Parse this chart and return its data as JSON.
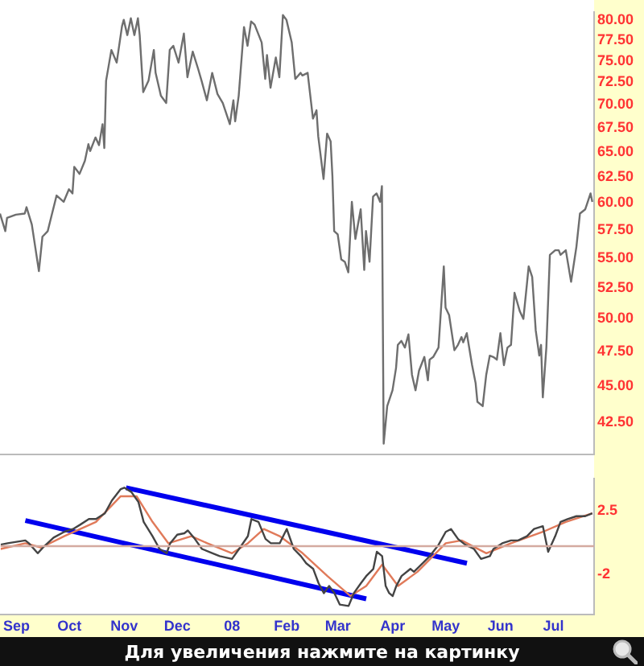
{
  "chart_data": [
    {
      "type": "line",
      "log": true,
      "legend": false,
      "tick_labels": "y",
      "xlim": [
        "2007-08-23",
        "2008-07-24"
      ],
      "ylim": [
        40.4,
        81.0
      ],
      "yticks": [
        {
          "value": 42.5,
          "label": "42.50"
        },
        {
          "value": 45,
          "label": "45.00"
        },
        {
          "value": 47.5,
          "label": "47.50"
        },
        {
          "value": 50,
          "label": "50.00"
        },
        {
          "value": 52.5,
          "label": "52.50"
        },
        {
          "value": 55,
          "label": "55.00"
        },
        {
          "value": 57.5,
          "label": "57.50"
        },
        {
          "value": 60,
          "label": "60.00"
        },
        {
          "value": 62.5,
          "label": "62.50"
        },
        {
          "value": 65,
          "label": "65.00"
        },
        {
          "value": 67.5,
          "label": "67.50"
        },
        {
          "value": 70,
          "label": "70.00"
        },
        {
          "value": 72.5,
          "label": "72.50"
        },
        {
          "value": 75,
          "label": "75.00"
        },
        {
          "value": 77.5,
          "label": "77.50"
        },
        {
          "value": 80,
          "label": "80.00"
        }
      ],
      "series": [
        {
          "color": "#6e6e6e",
          "x": [
            "2007-08-23",
            "2007-08-26",
            "2007-08-27",
            "2007-09-01",
            "2007-09-06",
            "2007-09-07",
            "2007-09-10",
            "2007-09-14",
            "2007-09-16",
            "2007-09-19",
            "2007-09-21",
            "2007-09-24",
            "2007-09-28",
            "2007-10-01",
            "2007-10-03",
            "2007-10-04",
            "2007-10-07",
            "2007-10-10",
            "2007-10-12",
            "2007-10-13",
            "2007-10-16",
            "2007-10-18",
            "2007-10-20",
            "2007-10-21",
            "2007-10-22",
            "2007-10-25",
            "2007-10-28",
            "2007-10-31",
            "2007-11-01",
            "2007-11-03",
            "2007-11-05",
            "2007-11-07",
            "2007-11-09",
            "2007-11-10",
            "2007-11-12",
            "2007-11-15",
            "2007-11-18",
            "2007-11-19",
            "2007-11-22",
            "2007-11-25",
            "2007-11-27",
            "2007-11-29",
            "2007-12-02",
            "2007-12-05",
            "2007-12-07",
            "2007-12-10",
            "2007-12-13",
            "2007-12-15",
            "2007-12-18",
            "2007-12-21",
            "2007-12-24",
            "2007-12-27",
            "2007-12-31",
            "2008-01-02",
            "2008-01-03",
            "2008-01-05",
            "2008-01-08",
            "2008-01-10",
            "2008-01-12",
            "2008-01-14",
            "2008-01-18",
            "2008-01-20",
            "2008-01-21",
            "2008-01-23",
            "2008-01-26",
            "2008-01-28",
            "2008-01-30",
            "2008-02-01",
            "2008-02-04",
            "2008-02-06",
            "2008-02-09",
            "2008-02-10",
            "2008-02-13",
            "2008-02-16",
            "2008-02-18",
            "2008-02-19",
            "2008-02-22",
            "2008-02-24",
            "2008-02-26",
            "2008-02-27",
            "2008-02-28",
            "2008-03-01",
            "2008-03-03",
            "2008-03-05",
            "2008-03-07",
            "2008-03-09",
            "2008-03-11",
            "2008-03-14",
            "2008-03-16",
            "2008-03-17",
            "2008-03-19",
            "2008-03-21",
            "2008-03-23",
            "2008-03-25",
            "2008-03-26",
            "2008-03-27",
            "2008-03-29",
            "2008-04-01",
            "2008-04-03",
            "2008-04-04",
            "2008-04-06",
            "2008-04-08",
            "2008-04-10",
            "2008-04-12",
            "2008-04-14",
            "2008-04-16",
            "2008-04-19",
            "2008-04-21",
            "2008-04-22",
            "2008-04-24",
            "2008-04-27",
            "2008-04-30",
            "2008-05-01",
            "2008-05-03",
            "2008-05-06",
            "2008-05-08",
            "2008-05-10",
            "2008-05-11",
            "2008-05-13",
            "2008-05-16",
            "2008-05-18",
            "2008-05-19",
            "2008-05-22",
            "2008-05-24",
            "2008-05-26",
            "2008-05-28",
            "2008-05-30",
            "2008-06-01",
            "2008-06-03",
            "2008-06-05",
            "2008-06-07",
            "2008-06-09",
            "2008-06-12",
            "2008-06-14",
            "2008-06-16",
            "2008-06-17",
            "2008-06-19",
            "2008-06-21",
            "2008-06-23",
            "2008-06-24",
            "2008-06-25",
            "2008-06-27",
            "2008-06-29",
            "2008-07-02",
            "2008-07-04",
            "2008-07-05",
            "2008-07-08",
            "2008-07-11",
            "2008-07-14",
            "2008-07-16",
            "2008-07-19",
            "2008-07-22",
            "2008-07-23"
          ],
          "values": [
            59.0,
            57.4,
            58.6,
            58.9,
            59.0,
            59.6,
            58.0,
            53.9,
            56.9,
            57.4,
            58.7,
            60.7,
            60.1,
            61.3,
            60.9,
            63.5,
            62.8,
            64.1,
            65.8,
            65.1,
            66.5,
            65.7,
            67.9,
            65.4,
            72.7,
            76.3,
            74.8,
            79.2,
            80.0,
            78.1,
            80.2,
            78.1,
            80.2,
            78.1,
            71.4,
            72.7,
            76.3,
            73.6,
            71.0,
            70.2,
            76.3,
            76.8,
            74.8,
            78.3,
            73.1,
            76.1,
            74.1,
            72.7,
            70.5,
            73.6,
            71.2,
            70.2,
            67.9,
            70.5,
            68.2,
            71.0,
            79.1,
            76.8,
            79.8,
            79.4,
            77.2,
            72.9,
            75.7,
            71.9,
            75.4,
            73.1,
            80.6,
            80.0,
            77.2,
            72.9,
            73.6,
            73.3,
            73.6,
            68.5,
            69.4,
            66.6,
            62.3,
            66.9,
            66.1,
            62.6,
            57.4,
            57.1,
            54.9,
            54.7,
            53.8,
            60.1,
            56.7,
            59.4,
            54.0,
            57.4,
            54.7,
            60.6,
            60.9,
            60.1,
            61.6,
            41.1,
            43.6,
            44.7,
            46.3,
            48.0,
            48.3,
            47.8,
            48.8,
            45.8,
            44.7,
            46.1,
            47.1,
            45.4,
            46.9,
            47.1,
            47.8,
            54.3,
            50.9,
            50.3,
            47.6,
            48.0,
            48.6,
            48.2,
            48.9,
            46.5,
            45.2,
            43.9,
            43.6,
            45.8,
            47.2,
            47.1,
            46.9,
            48.9,
            46.5,
            47.8,
            48.0,
            52.1,
            50.6,
            50.0,
            52.8,
            54.3,
            53.4,
            49.1,
            47.2,
            48.0,
            44.2,
            47.8,
            55.3,
            55.7,
            55.7,
            55.3,
            55.7,
            53.0,
            56.0,
            59.0,
            59.4,
            60.9,
            60.1
          ]
        }
      ]
    },
    {
      "type": "line",
      "legend": false,
      "xlim": [
        "2007-08-23",
        "2008-07-24"
      ],
      "ylim": [
        -4.8,
        4.75
      ],
      "yticks": [
        -2,
        2.5
      ],
      "xticks": [
        {
          "value": "2007-09-01",
          "label": "Sep"
        },
        {
          "value": "2007-10-01",
          "label": "Oct"
        },
        {
          "value": "2007-11-01",
          "label": "Nov"
        },
        {
          "value": "2007-12-01",
          "label": "Dec"
        },
        {
          "value": "2008-01-01",
          "label": "08"
        },
        {
          "value": "2008-02-01",
          "label": "Feb"
        },
        {
          "value": "2008-03-01",
          "label": "Mar"
        },
        {
          "value": "2008-04-01",
          "label": "Apr"
        },
        {
          "value": "2008-05-01",
          "label": "May"
        },
        {
          "value": "2008-06-01",
          "label": "Jun"
        },
        {
          "value": "2008-07-01",
          "label": "Jul"
        }
      ],
      "ref_lines": [
        {
          "axis": "y",
          "value": 0,
          "color": "#d4aaa0"
        }
      ],
      "annotations": [
        "Для увеличения нажмите на картинку"
      ],
      "series": [
        {
          "color": "#444444",
          "x": [
            "2007-08-23",
            "2007-08-27",
            "2007-09-01",
            "2007-09-06",
            "2007-09-08",
            "2007-09-13",
            "2007-09-16",
            "2007-09-22",
            "2007-09-28",
            "2007-10-03",
            "2007-10-07",
            "2007-10-12",
            "2007-10-16",
            "2007-10-21",
            "2007-10-25",
            "2007-10-30",
            "2007-11-01",
            "2007-11-05",
            "2007-11-09",
            "2007-11-12",
            "2007-11-17",
            "2007-11-21",
            "2007-11-25",
            "2007-11-27",
            "2007-12-01",
            "2007-12-05",
            "2007-12-07",
            "2007-12-11",
            "2007-12-15",
            "2007-12-21",
            "2007-12-25",
            "2008-01-01",
            "2008-01-05",
            "2008-01-10",
            "2008-01-12",
            "2008-01-16",
            "2008-01-20",
            "2008-01-23",
            "2008-01-28",
            "2008-01-30",
            "2008-02-01",
            "2008-02-05",
            "2008-02-09",
            "2008-02-12",
            "2008-02-16",
            "2008-02-19",
            "2008-02-22",
            "2008-02-25",
            "2008-02-28",
            "2008-03-02",
            "2008-03-07",
            "2008-03-10",
            "2008-03-14",
            "2008-03-17",
            "2008-03-21",
            "2008-03-23",
            "2008-03-26",
            "2008-03-28",
            "2008-03-30",
            "2008-04-01",
            "2008-04-03",
            "2008-04-06",
            "2008-04-11",
            "2008-04-13",
            "2008-04-18",
            "2008-04-22",
            "2008-04-27",
            "2008-05-01",
            "2008-05-04",
            "2008-05-08",
            "2008-05-12",
            "2008-05-17",
            "2008-05-21",
            "2008-05-26",
            "2008-05-28",
            "2008-06-02",
            "2008-06-07",
            "2008-06-11",
            "2008-06-16",
            "2008-06-20",
            "2008-06-25",
            "2008-06-28",
            "2008-07-02",
            "2008-07-05",
            "2008-07-09",
            "2008-07-14",
            "2008-07-19",
            "2008-07-23"
          ],
          "values": [
            0.1,
            0.2,
            0.3,
            0.4,
            0.2,
            -0.5,
            -0.1,
            0.6,
            1.0,
            1.2,
            1.5,
            1.9,
            1.9,
            2.3,
            3.2,
            4.0,
            4.1,
            3.8,
            3.1,
            1.7,
            0.7,
            -0.2,
            -0.5,
            0.2,
            0.8,
            0.9,
            1.1,
            0.5,
            -0.2,
            -0.5,
            -0.7,
            -0.9,
            -0.2,
            0.7,
            1.9,
            1.7,
            0.5,
            0.2,
            0.2,
            0.7,
            1.2,
            -0.2,
            -0.7,
            -1.2,
            -1.6,
            -2.6,
            -3.3,
            -2.8,
            -3.3,
            -4.1,
            -4.2,
            -3.3,
            -2.6,
            -2.1,
            -1.6,
            -0.4,
            -0.7,
            -2.8,
            -3.3,
            -3.5,
            -2.8,
            -2.1,
            -1.6,
            -1.8,
            -1.2,
            -0.7,
            0.1,
            1.0,
            1.2,
            0.5,
            0.1,
            -0.2,
            -0.9,
            -0.7,
            -0.2,
            0.2,
            0.4,
            0.4,
            0.7,
            1.2,
            1.4,
            -0.4,
            0.7,
            1.7,
            1.9,
            2.1,
            2.1,
            2.3
          ]
        },
        {
          "color": "#e07a5a",
          "x": [
            "2007-08-23",
            "2007-09-06",
            "2007-09-15",
            "2007-09-28",
            "2007-10-16",
            "2007-10-30",
            "2007-11-08",
            "2007-11-17",
            "2007-11-26",
            "2007-12-09",
            "2007-12-18",
            "2008-01-01",
            "2008-01-10",
            "2008-01-19",
            "2008-01-28",
            "2008-02-10",
            "2008-02-24",
            "2008-03-08",
            "2008-03-17",
            "2008-03-26",
            "2008-04-04",
            "2008-04-15",
            "2008-05-01",
            "2008-05-10",
            "2008-05-24",
            "2008-06-07",
            "2008-06-25",
            "2008-07-08",
            "2008-07-23"
          ],
          "values": [
            -0.2,
            0.2,
            -0.1,
            0.7,
            1.7,
            3.5,
            3.5,
            1.7,
            0.2,
            0.7,
            0.2,
            -0.5,
            0.2,
            1.2,
            0.7,
            -0.5,
            -2.1,
            -3.5,
            -2.8,
            -1.3,
            -2.8,
            -1.8,
            0.2,
            0.4,
            -0.5,
            0.2,
            1.0,
            1.7,
            2.3
          ]
        },
        {
          "type": "line",
          "color": "#0000ee",
          "x": [
            "2007-11-02",
            "2008-05-13"
          ],
          "values": [
            4.1,
            -1.2
          ]
        },
        {
          "type": "line",
          "color": "#0000ee",
          "x": [
            "2007-09-06",
            "2008-03-17"
          ],
          "values": [
            1.8,
            -3.7
          ]
        }
      ]
    }
  ]
}
